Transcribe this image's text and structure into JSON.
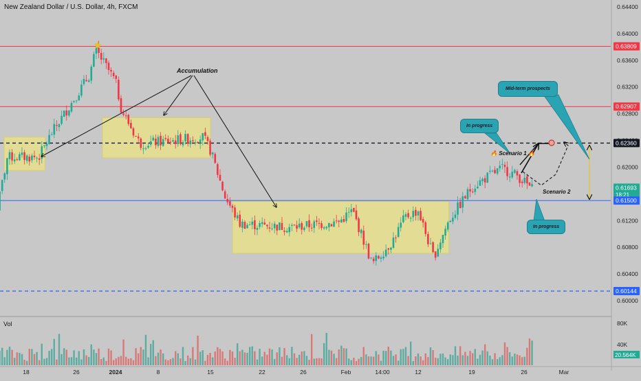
{
  "header": {
    "title": "New Zealand Dollar / U.S. Dollar, 4h, FXCM"
  },
  "volume": {
    "label": "Vol",
    "ticks": [
      "80K",
      "40K"
    ],
    "current": "20.564K"
  },
  "price_axis": {
    "ticks": [
      "0.64400",
      "0.64000",
      "0.63600",
      "0.63200",
      "0.62800",
      "0.62400",
      "0.62000",
      "0.61600",
      "0.61200",
      "0.60800",
      "0.60400",
      "0.60000"
    ],
    "badges": [
      {
        "label": "0.63809",
        "color": "#f23645"
      },
      {
        "label": "0.62907",
        "color": "#f23645"
      },
      {
        "label": "0.62360",
        "color": "#131722"
      },
      {
        "label": "0.61693",
        "sub": "18:21",
        "color": "#22ab94"
      },
      {
        "label": "0.61500",
        "color": "#2962ff"
      },
      {
        "label": "0.60144",
        "color": "#2962ff"
      }
    ]
  },
  "time_axis": {
    "ticks": [
      "18",
      "26",
      "2024",
      "8",
      "15",
      "22",
      "26",
      "Feb",
      "14:00",
      "12",
      "19",
      "26",
      "Mar"
    ]
  },
  "annotations": {
    "accumulation": "Accumulation",
    "scenario1": "Scenario 1",
    "scenario2": "Scenario 2",
    "in_progress_top": "In progress",
    "in_progress_bottom": "In progress",
    "mid_term": "Mid-term prospects"
  },
  "colors": {
    "up": "#22ab94",
    "down": "#f23645",
    "resistance": "#f23645",
    "support": "#2962ff",
    "zone": "#e7df8c",
    "callout": "#2aa3b3"
  },
  "chart_data": {
    "type": "candlestick",
    "title": "New Zealand Dollar / U.S. Dollar, 4h, FXCM",
    "symbol": "NZDUSD",
    "timeframe": "4h",
    "ylim": [
      0.6,
      0.644
    ],
    "levels": [
      {
        "value": 0.63809,
        "style": "solid",
        "color": "#f23645"
      },
      {
        "value": 0.62907,
        "style": "solid",
        "color": "#f23645"
      },
      {
        "value": 0.6236,
        "style": "dashed",
        "color": "#131722"
      },
      {
        "value": 0.615,
        "style": "solid",
        "color": "#2962ff"
      },
      {
        "value": 0.60144,
        "style": "dashed",
        "color": "#2962ff"
      }
    ],
    "last_price": 0.61693,
    "zones": [
      {
        "from": "Dec 13",
        "to": "Dec 21",
        "low": 0.6195,
        "high": 0.6245
      },
      {
        "from": "Dec 30",
        "to": "Jan 15",
        "low": 0.6214,
        "high": 0.6274
      },
      {
        "from": "Jan 18",
        "to": "Feb 16",
        "low": 0.6071,
        "high": 0.6149
      }
    ],
    "close_path": [
      {
        "date": "Dec 13",
        "close": 0.612
      },
      {
        "date": "Dec 15",
        "close": 0.6215
      },
      {
        "date": "Dec 20",
        "close": 0.6215
      },
      {
        "date": "Dec 22",
        "close": 0.625
      },
      {
        "date": "Dec 25",
        "close": 0.6293
      },
      {
        "date": "Dec 28",
        "close": 0.6338
      },
      {
        "date": "Dec 29",
        "close": 0.6375
      },
      {
        "date": "Jan 1",
        "close": 0.6328
      },
      {
        "date": "Jan 2",
        "close": 0.6285
      },
      {
        "date": "Jan 5",
        "close": 0.6235
      },
      {
        "date": "Jan 10",
        "close": 0.624
      },
      {
        "date": "Jan 14",
        "close": 0.6245
      },
      {
        "date": "Jan 15",
        "close": 0.6225
      },
      {
        "date": "Jan 17",
        "close": 0.6155
      },
      {
        "date": "Jan 19",
        "close": 0.6115
      },
      {
        "date": "Jan 25",
        "close": 0.611
      },
      {
        "date": "Jan 31",
        "close": 0.6118
      },
      {
        "date": "Feb 2",
        "close": 0.6135
      },
      {
        "date": "Feb 5",
        "close": 0.6055
      },
      {
        "date": "Feb 8",
        "close": 0.6088
      },
      {
        "date": "Feb 10",
        "close": 0.6125
      },
      {
        "date": "Feb 12",
        "close": 0.6135
      },
      {
        "date": "Feb 14",
        "close": 0.6065
      },
      {
        "date": "Feb 16",
        "close": 0.612
      },
      {
        "date": "Feb 19",
        "close": 0.617
      },
      {
        "date": "Feb 21",
        "close": 0.6185
      },
      {
        "date": "Feb 23",
        "close": 0.6198
      },
      {
        "date": "Feb 25",
        "close": 0.6188
      },
      {
        "date": "Feb 27",
        "close": 0.6165
      }
    ]
  }
}
